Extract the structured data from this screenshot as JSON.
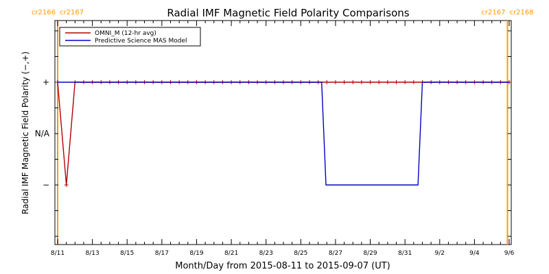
{
  "chart_data": {
    "type": "line",
    "title": "Radial IMF Magnetic Field Polarity Comparisons",
    "xlabel": "Month/Day from 2015-08-11 to 2015-09-07 (UT)",
    "ylabel": "Radial IMF Magnetic Field Polarity (−,+)",
    "x_tick_labels": [
      "8/11",
      "8/13",
      "8/15",
      "8/17",
      "8/19",
      "8/21",
      "8/23",
      "8/25",
      "8/27",
      "8/29",
      "8/31",
      "9/2",
      "9/4",
      "9/6"
    ],
    "y_tick_labels": [
      "+",
      "N/A",
      "−"
    ],
    "y_levels": {
      "+": 1,
      "N/A": 0,
      "−": -1
    },
    "carrington_markers": [
      {
        "label_left": "cr2166",
        "label_right": "cr2167",
        "x_day": 0.0
      },
      {
        "label_left": "cr2167",
        "label_right": "cr2168",
        "x_day": 25.9
      }
    ],
    "series": [
      {
        "name": "OMNI_M (12-hr avg)",
        "color": "#b00000",
        "markers": true,
        "x_days": [
          0,
          0.5,
          1.0,
          1.5,
          2.0,
          2.5,
          3.0,
          3.5,
          4.0,
          4.5,
          5.0,
          5.5,
          6.0,
          6.5,
          7.0,
          7.5,
          8.0,
          8.5,
          9.0,
          9.5,
          10.0,
          10.5,
          11.0,
          11.5,
          12.0,
          12.5,
          13.0,
          13.5,
          14.0,
          14.5,
          15.0,
          15.5,
          16.0,
          16.5,
          17.0,
          17.5,
          18.0,
          18.5,
          19.0,
          19.5,
          20.0,
          20.5,
          21.0,
          21.5,
          22.0,
          22.5,
          23.0,
          23.5,
          24.0,
          24.5,
          25.0,
          25.5,
          26.0
        ],
        "values": [
          1,
          -1,
          1,
          1,
          1,
          1,
          1,
          1,
          1,
          1,
          1,
          1,
          1,
          1,
          1,
          1,
          1,
          1,
          1,
          1,
          1,
          1,
          1,
          1,
          1,
          1,
          1,
          1,
          1,
          1,
          1,
          1,
          1,
          1,
          1,
          1,
          1,
          1,
          1,
          1,
          1,
          1,
          1,
          1,
          1,
          1,
          1,
          1,
          1,
          1,
          1,
          1,
          1
        ]
      },
      {
        "name": "Predictive Science MAS Model",
        "color": "#0000c8",
        "markers": false,
        "x_days": [
          0,
          15.2,
          15.45,
          20.75,
          21.0,
          26.0
        ],
        "values": [
          1,
          1,
          -1,
          -1,
          1,
          1
        ]
      }
    ],
    "xlim": [
      0,
      26.0
    ],
    "ylim": [
      -2,
      2
    ],
    "grid": false,
    "legend_position": "top-left"
  }
}
